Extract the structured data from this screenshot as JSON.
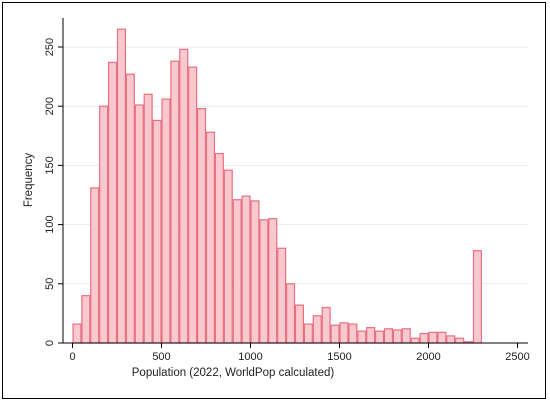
{
  "chart_data": {
    "type": "bar",
    "subtype": "histogram",
    "xlabel": "Population (2022, WorldPop calculated)",
    "ylabel": "Frequency",
    "xlim": [
      0,
      2500
    ],
    "ylim": [
      0,
      265
    ],
    "xticks": [
      0,
      500,
      1000,
      1500,
      2000,
      2500
    ],
    "yticks": [
      0,
      50,
      100,
      150,
      200,
      250
    ],
    "grid": true,
    "bin_width": 50,
    "bin_starts": [
      0,
      50,
      100,
      150,
      200,
      250,
      300,
      350,
      400,
      450,
      500,
      550,
      600,
      650,
      700,
      750,
      800,
      850,
      900,
      950,
      1000,
      1050,
      1100,
      1150,
      1200,
      1250,
      1300,
      1350,
      1400,
      1450,
      1500,
      1550,
      1600,
      1650,
      1700,
      1750,
      1800,
      1850,
      1900,
      1950,
      2000,
      2050,
      2100,
      2150,
      2200,
      2250
    ],
    "values": [
      16,
      40,
      131,
      200,
      237,
      265,
      227,
      201,
      210,
      188,
      206,
      238,
      248,
      233,
      198,
      178,
      160,
      146,
      121,
      124,
      120,
      104,
      105,
      80,
      50,
      32,
      16,
      23,
      30,
      15,
      17,
      16,
      10,
      13,
      10,
      12,
      11,
      12,
      4,
      8,
      9,
      9,
      6,
      4,
      1,
      78
    ],
    "bar_fill": "#f9c9cf",
    "bar_stroke": "#e8707f"
  }
}
